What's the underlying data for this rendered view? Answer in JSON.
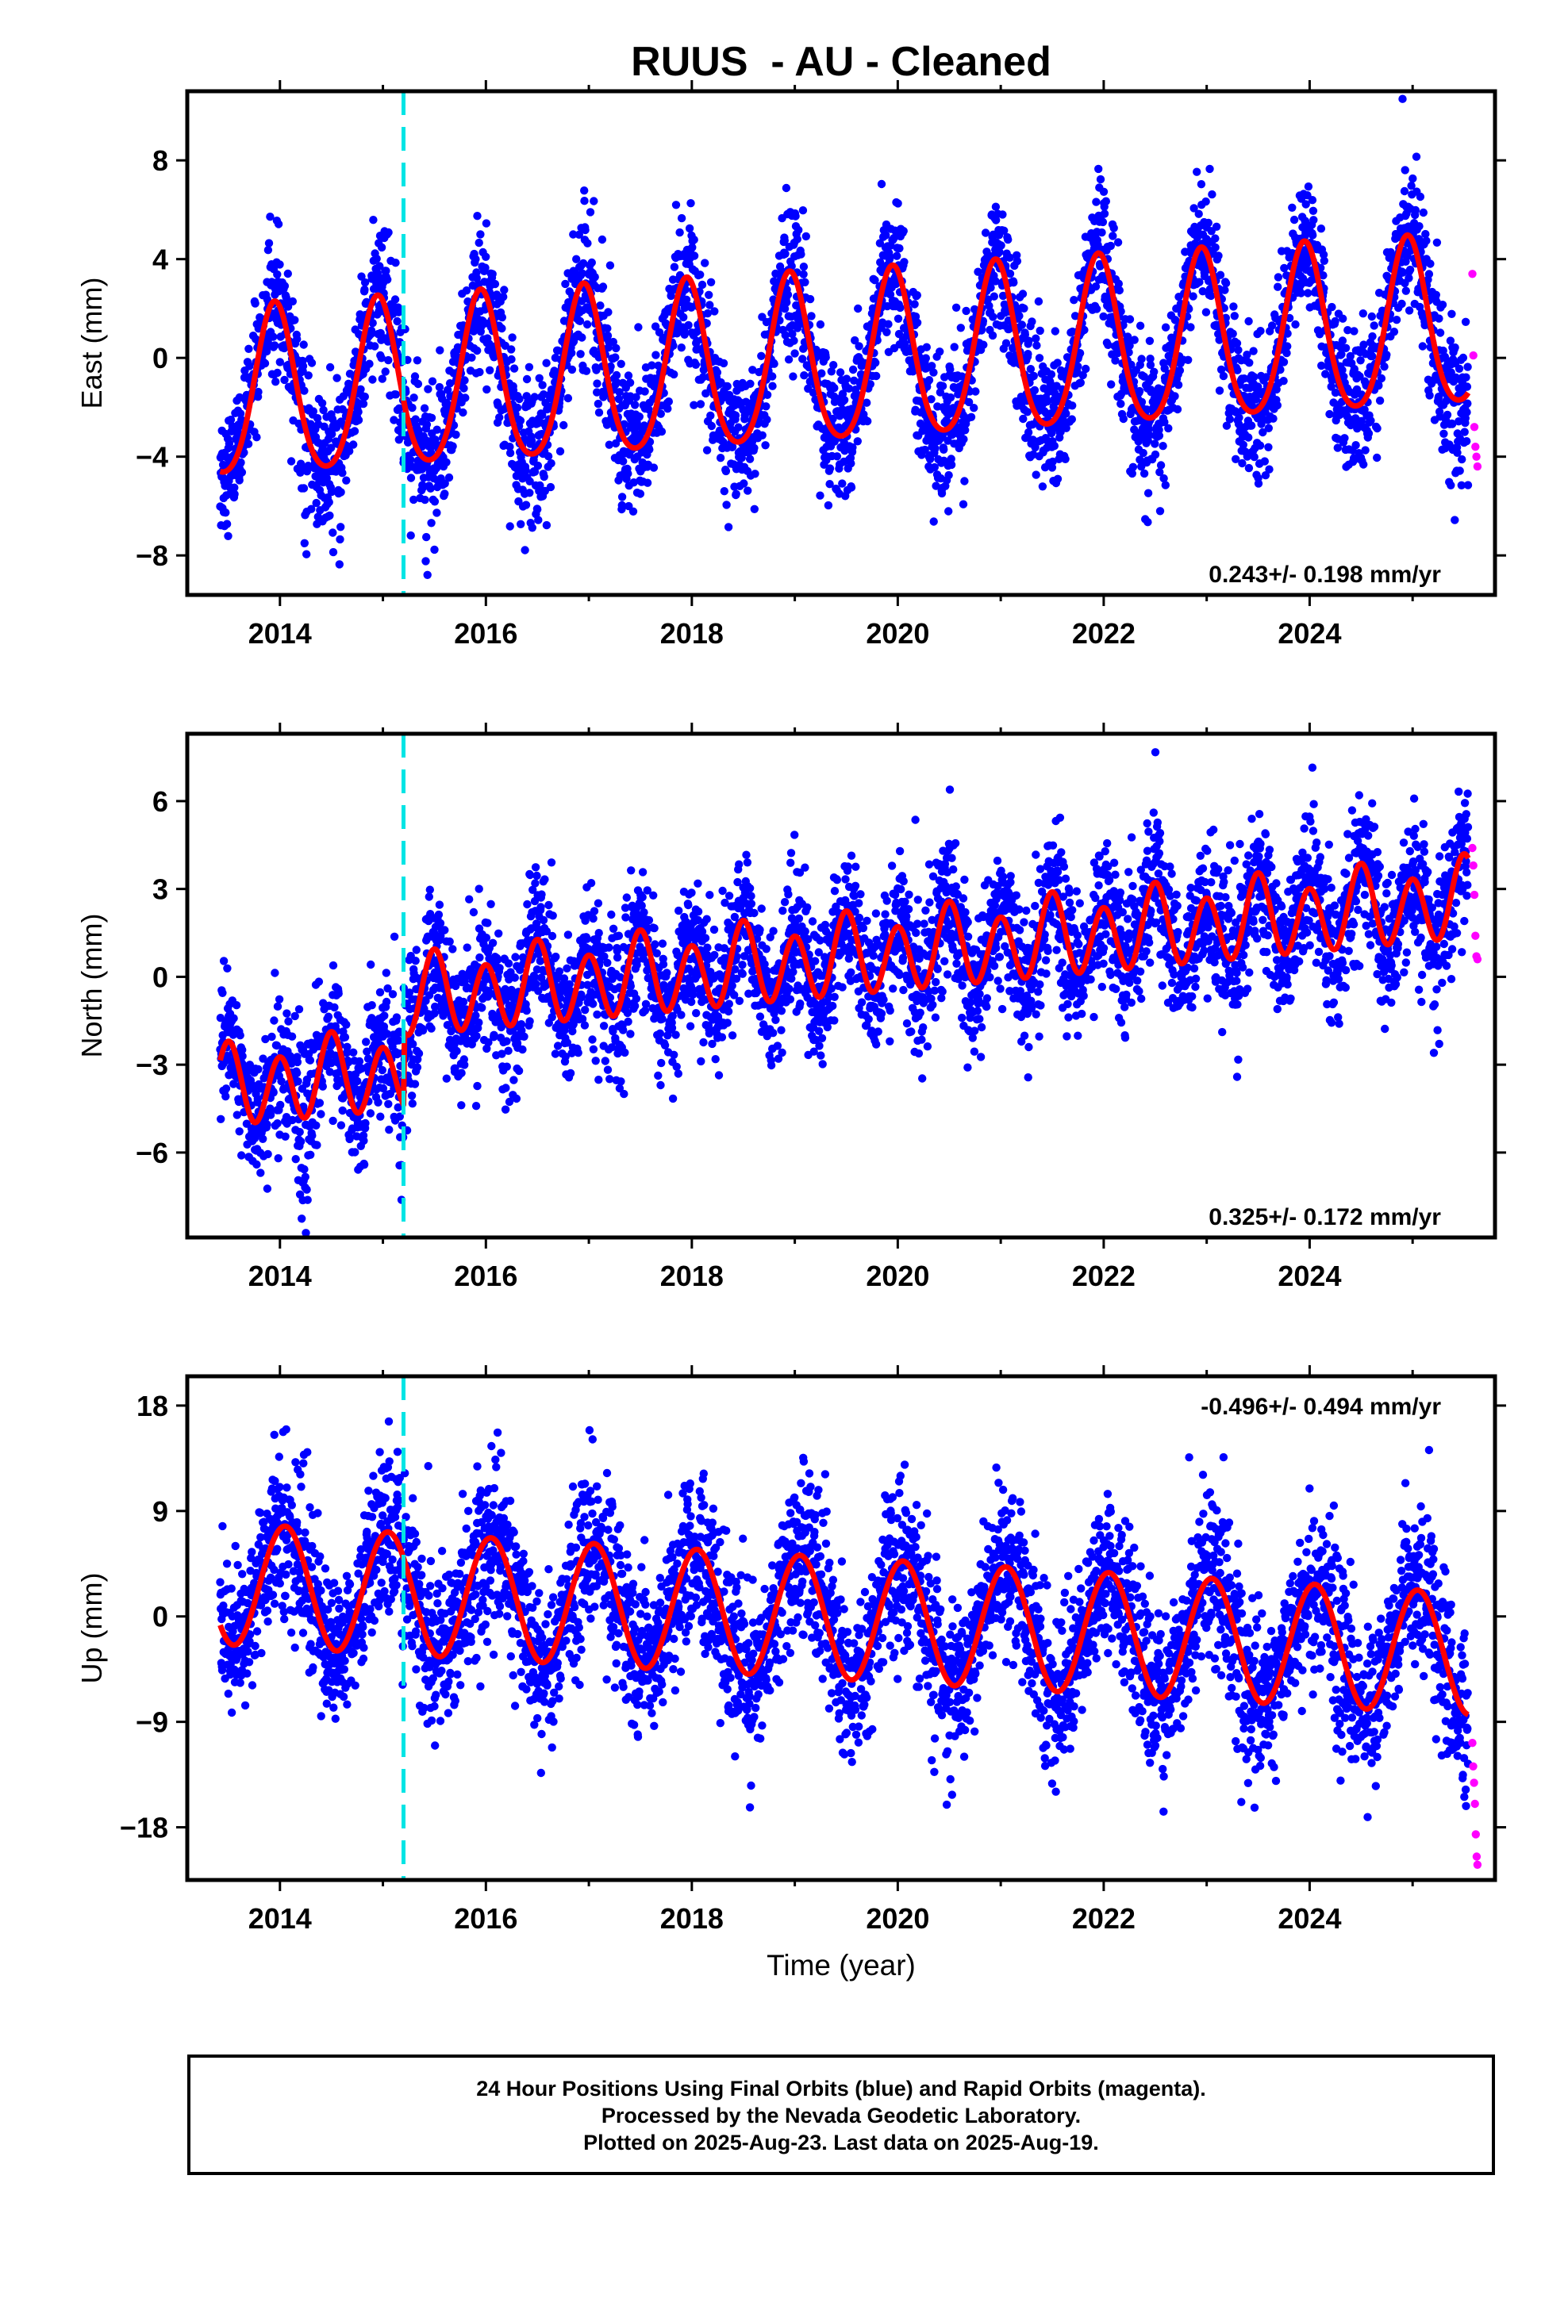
{
  "title": "RUUS  - AU - Cleaned",
  "xlabel": "Time (year)",
  "caption": {
    "line1": "24 Hour Positions Using Final Orbits (blue) and Rapid Orbits (magenta).",
    "line2": "Processed by the Nevada Geodetic Laboratory.",
    "line3": "Plotted on 2025-Aug-23. Last data on 2025-Aug-19."
  },
  "colors": {
    "final": "#0000ff",
    "rapid": "#ff00ff",
    "model": "#ff0000",
    "equipment_change": "#00e5e5"
  },
  "chart_data": [
    {
      "type": "scatter",
      "component": "east",
      "ylabel": "East (mm)",
      "rate_label": "0.243+/- 0.198 mm/yr",
      "rate_position": "bottom-right",
      "xlim": [
        2013.1,
        2025.8
      ],
      "ylim": [
        -9.6,
        10.8
      ],
      "xticks": [
        2014,
        2016,
        2018,
        2020,
        2022,
        2024
      ],
      "yticks": [
        -8,
        -4,
        0,
        4,
        8
      ],
      "equipment_change": 2015.2,
      "data_span": [
        2013.42,
        2025.54
      ],
      "rapid_span": [
        2025.58,
        2025.63
      ],
      "model": {
        "t0": 2019.5,
        "trend_mm_per_yr": 0.243,
        "offset_mm": -0.2,
        "annual_amp_mm": 3.4,
        "annual_peak": 2019.95,
        "semiannual_amp_mm": 0.45,
        "semiannual_peak": 2019.95
      },
      "scatter_sd_mm": 1.3,
      "rapid_values": [
        3.4,
        0.1,
        -2.8,
        -3.6,
        -4.0,
        -4.4
      ]
    },
    {
      "type": "scatter",
      "component": "north",
      "ylabel": "North (mm)",
      "rate_label": "0.325+/- 0.172 mm/yr",
      "rate_position": "bottom-right",
      "xlim": [
        2013.1,
        2025.8
      ],
      "ylim": [
        -8.9,
        8.3
      ],
      "xticks": [
        2014,
        2016,
        2018,
        2020,
        2022,
        2024
      ],
      "yticks": [
        -6,
        -3,
        0,
        3,
        6
      ],
      "equipment_change": 2015.2,
      "data_span": [
        2013.42,
        2025.54
      ],
      "rapid_span": [
        2025.58,
        2025.63
      ],
      "offsets": [
        {
          "epoch": 2015.2,
          "mm": 2.5
        }
      ],
      "model": {
        "t0": 2019.5,
        "trend_mm_per_yr": 0.325,
        "offset_mm": -0.6,
        "annual_amp_mm": 0.35,
        "annual_peak": 2019.5,
        "semiannual_amp_mm": 1.25,
        "semiannual_peak": 2019.5
      },
      "scatter_sd_mm": 1.15,
      "rapid_values": [
        4.4,
        3.8,
        2.8,
        1.4,
        0.7,
        0.6
      ]
    },
    {
      "type": "scatter",
      "component": "up",
      "ylabel": "Up (mm)",
      "rate_label": "-0.496+/- 0.494 mm/yr",
      "rate_position": "top-right",
      "xlim": [
        2013.1,
        2025.8
      ],
      "ylim": [
        -22.5,
        20.5
      ],
      "xticks": [
        2014,
        2016,
        2018,
        2020,
        2022,
        2024
      ],
      "yticks": [
        -18,
        -9,
        0,
        9,
        18
      ],
      "equipment_change": 2015.2,
      "data_span": [
        2013.42,
        2025.54
      ],
      "rapid_span": [
        2025.58,
        2025.63
      ],
      "model": {
        "t0": 2019.5,
        "trend_mm_per_yr": -0.496,
        "offset_mm": -0.2,
        "annual_amp_mm": 5.2,
        "annual_peak": 2020.05,
        "semiannual_amp_mm": 0.0,
        "semiannual_peak": 2020.05
      },
      "scatter_sd_mm": 3.3,
      "rapid_values": [
        -10.8,
        -12.8,
        -14.2,
        -16.0,
        -18.6,
        -20.5,
        -21.2
      ]
    }
  ]
}
